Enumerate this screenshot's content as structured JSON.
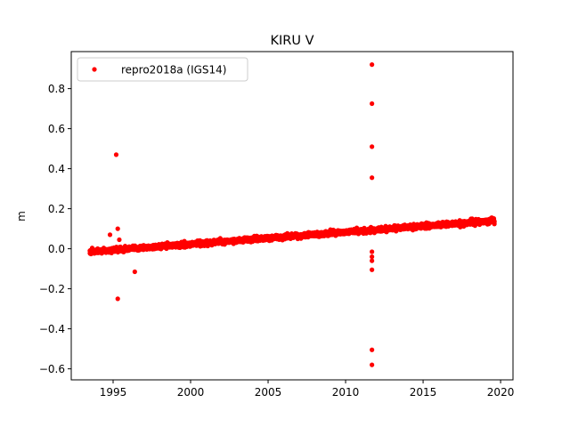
{
  "chart_data": {
    "type": "scatter",
    "title": "KIRU V",
    "xlabel": "",
    "ylabel": "m",
    "xlim": [
      1992.3,
      2020.8
    ],
    "ylim": [
      -0.655,
      0.985
    ],
    "x_ticks": [
      1995,
      2000,
      2005,
      2010,
      2015,
      2020
    ],
    "y_ticks": [
      -0.6,
      -0.4,
      -0.2,
      0.0,
      0.2,
      0.4,
      0.6,
      0.8
    ],
    "x_tick_labels": [
      "1995",
      "2000",
      "2005",
      "2010",
      "2015",
      "2020"
    ],
    "y_tick_labels": [
      "−0.6",
      "−0.4",
      "−0.2",
      "0.0",
      "0.2",
      "0.4",
      "0.6",
      "0.8"
    ],
    "grid": false,
    "legend": {
      "position": "upper-left",
      "entries": [
        "repro2018a (IGS14)"
      ]
    },
    "marker_color": "#ff0000",
    "series": [
      {
        "name": "repro2018a (IGS14)",
        "trend": {
          "x_start": 1993.5,
          "x_end": 2019.6,
          "y_start": -0.015,
          "y_end": 0.14,
          "scatter": 0.02
        },
        "outliers": [
          {
            "x": 1995.2,
            "y": 0.47
          },
          {
            "x": 1995.3,
            "y": 0.1
          },
          {
            "x": 1995.4,
            "y": 0.045
          },
          {
            "x": 1994.8,
            "y": 0.07
          },
          {
            "x": 1995.3,
            "y": -0.25
          },
          {
            "x": 1996.4,
            "y": -0.115
          },
          {
            "x": 2011.7,
            "y": 0.92
          },
          {
            "x": 2011.7,
            "y": 0.725
          },
          {
            "x": 2011.7,
            "y": 0.51
          },
          {
            "x": 2011.7,
            "y": 0.355
          },
          {
            "x": 2011.7,
            "y": -0.015
          },
          {
            "x": 2011.7,
            "y": -0.04
          },
          {
            "x": 2011.7,
            "y": -0.06
          },
          {
            "x": 2011.7,
            "y": -0.105
          },
          {
            "x": 2011.7,
            "y": -0.505
          },
          {
            "x": 2011.7,
            "y": -0.58
          }
        ]
      }
    ]
  }
}
